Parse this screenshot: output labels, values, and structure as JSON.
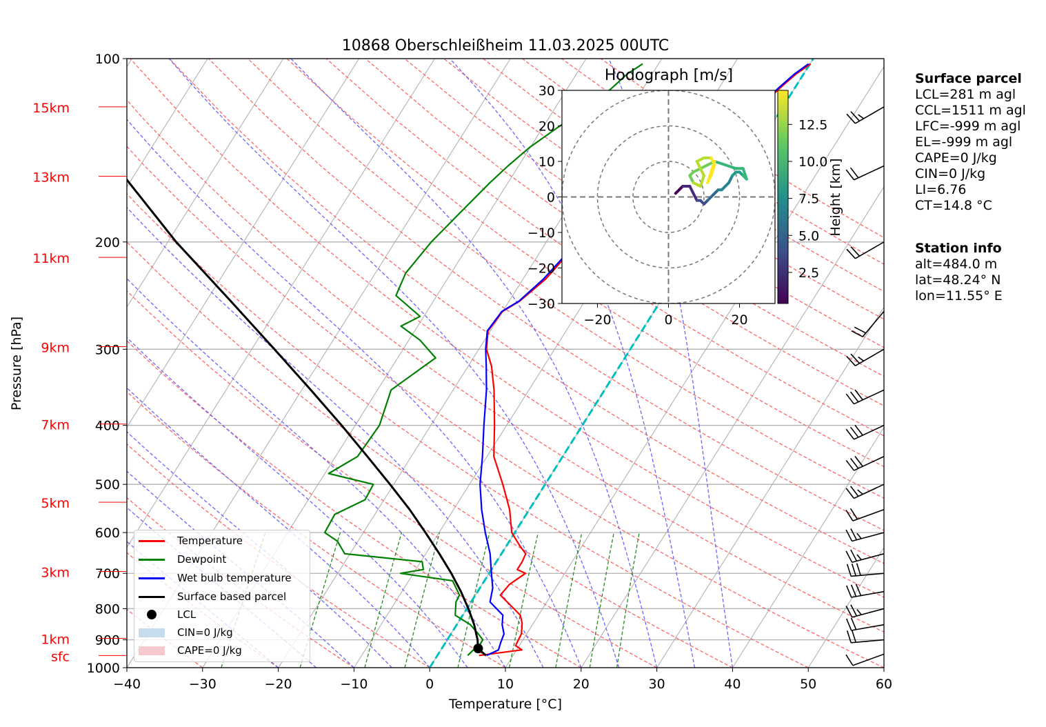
{
  "title": "10868 Oberschleißheim 11.03.2025 00UTC",
  "xlabel": "Temperature [°C]",
  "ylabel": "Pressure [hPa]",
  "colors": {
    "temperature": "#ff0000",
    "dewpoint": "#008000",
    "wetbulb": "#0000ff",
    "parcel": "#000000",
    "dry_adiabat": "#ff6666",
    "moist_adiabat": "#6666ff",
    "mixing_ratio": "#228b22",
    "isotherm": "#aaaaaa",
    "zero_line": "#00bfbf",
    "height_label": "#ff0000"
  },
  "chart_data": {
    "type": "line",
    "x_range": [
      -40,
      60
    ],
    "pressure_range": [
      1000,
      100
    ],
    "x_ticks": [
      "−40",
      "−30",
      "−20",
      "−10",
      "0",
      "10",
      "20",
      "30",
      "40",
      "50",
      "60"
    ],
    "pressure_ticks": [
      "1000",
      "900",
      "800",
      "700",
      "600",
      "500",
      "400",
      "300",
      "200",
      "100"
    ],
    "height_labels": [
      "sfc",
      "1km",
      "3km",
      "5km",
      "7km",
      "9km",
      "11km",
      "13km",
      "15km"
    ],
    "height_label_pressures": [
      955,
      895,
      695,
      535,
      398,
      297,
      212,
      156,
      120
    ],
    "series": [
      {
        "name": "Temperature",
        "points": [
          [
            955,
            5.5
          ],
          [
            935,
            10.7
          ],
          [
            920,
            9.5
          ],
          [
            880,
            9.3
          ],
          [
            845,
            8.5
          ],
          [
            820,
            7.6
          ],
          [
            800,
            6.2
          ],
          [
            760,
            3.3
          ],
          [
            730,
            3.6
          ],
          [
            700,
            4.8
          ],
          [
            690,
            3.4
          ],
          [
            670,
            3.4
          ],
          [
            650,
            3.2
          ],
          [
            630,
            1.7
          ],
          [
            600,
            -0.4
          ],
          [
            550,
            -2.6
          ],
          [
            500,
            -5.6
          ],
          [
            450,
            -9.1
          ],
          [
            400,
            -11.6
          ],
          [
            350,
            -14.6
          ],
          [
            320,
            -16.9
          ],
          [
            300,
            -19.0
          ],
          [
            280,
            -20.3
          ],
          [
            260,
            -20.0
          ],
          [
            250,
            -18.6
          ],
          [
            230,
            -17.0
          ],
          [
            210,
            -16.2
          ],
          [
            200,
            -15.3
          ],
          [
            180,
            -12.4
          ],
          [
            165,
            -10.0
          ],
          [
            150,
            -7.6
          ],
          [
            140,
            -5.2
          ],
          [
            130,
            -3.0
          ],
          [
            120,
            -3.0
          ],
          [
            112,
            -2.0
          ],
          [
            106,
            -1.0
          ],
          [
            102,
            0.1
          ]
        ]
      },
      {
        "name": "Dewpoint",
        "points": [
          [
            955,
            4.0
          ],
          [
            935,
            4.3
          ],
          [
            920,
            4.7
          ],
          [
            900,
            4.7
          ],
          [
            880,
            3.6
          ],
          [
            850,
            1.8
          ],
          [
            820,
            -1.0
          ],
          [
            780,
            -2.0
          ],
          [
            760,
            -2.1
          ],
          [
            720,
            -4.2
          ],
          [
            700,
            -11.7
          ],
          [
            690,
            -9.0
          ],
          [
            670,
            -9.8
          ],
          [
            650,
            -20.7
          ],
          [
            620,
            -22.7
          ],
          [
            600,
            -25.1
          ],
          [
            560,
            -25.3
          ],
          [
            530,
            -22.5
          ],
          [
            500,
            -22.7
          ],
          [
            480,
            -29.5
          ],
          [
            450,
            -27.1
          ],
          [
            400,
            -26.8
          ],
          [
            350,
            -28.2
          ],
          [
            310,
            -25.0
          ],
          [
            290,
            -28.5
          ],
          [
            275,
            -32.2
          ],
          [
            265,
            -30.5
          ],
          [
            245,
            -35.4
          ],
          [
            225,
            -36.0
          ],
          [
            200,
            -35.2
          ],
          [
            180,
            -33.9
          ],
          [
            160,
            -32.4
          ],
          [
            150,
            -31.4
          ],
          [
            140,
            -30.1
          ],
          [
            130,
            -28.1
          ],
          [
            120,
            -25.6
          ],
          [
            112,
            -24.2
          ],
          [
            106,
            -23.3
          ],
          [
            102,
            -22.1
          ]
        ]
      },
      {
        "name": "Wet bulb temperature",
        "points": [
          [
            955,
            6.5
          ],
          [
            935,
            7.6
          ],
          [
            910,
            7.3
          ],
          [
            880,
            7.0
          ],
          [
            850,
            6.0
          ],
          [
            820,
            5.3
          ],
          [
            780,
            2.5
          ],
          [
            740,
            1.7
          ],
          [
            700,
            0.3
          ],
          [
            650,
            -1.5
          ],
          [
            600,
            -3.9
          ],
          [
            550,
            -6.3
          ],
          [
            500,
            -8.6
          ],
          [
            450,
            -10.6
          ],
          [
            400,
            -13.0
          ],
          [
            350,
            -15.6
          ],
          [
            320,
            -17.6
          ],
          [
            300,
            -19.1
          ],
          [
            280,
            -20.4
          ],
          [
            260,
            -20.1
          ],
          [
            250,
            -18.7
          ],
          [
            230,
            -17.3
          ],
          [
            210,
            -16.4
          ],
          [
            200,
            -15.5
          ],
          [
            180,
            -12.7
          ],
          [
            165,
            -10.3
          ],
          [
            150,
            -7.8
          ],
          [
            140,
            -5.5
          ],
          [
            130,
            -3.3
          ],
          [
            120,
            -3.2
          ],
          [
            112,
            -2.2
          ],
          [
            106,
            -1.2
          ],
          [
            102,
            -0.2
          ]
        ]
      },
      {
        "name": "Surface based parcel",
        "points": [
          [
            955,
            6.4
          ],
          [
            930,
            4.8
          ],
          [
            900,
            4.0
          ],
          [
            850,
            2.3
          ],
          [
            800,
            0.2
          ],
          [
            750,
            -2.2
          ],
          [
            700,
            -5.0
          ],
          [
            650,
            -8.2
          ],
          [
            600,
            -11.8
          ],
          [
            550,
            -15.8
          ],
          [
            500,
            -20.5
          ],
          [
            450,
            -25.8
          ],
          [
            400,
            -31.8
          ],
          [
            350,
            -38.8
          ],
          [
            300,
            -47.0
          ],
          [
            250,
            -56.8
          ],
          [
            200,
            -68.9
          ],
          [
            150,
            -83.2
          ]
        ]
      }
    ],
    "lcl": {
      "label": "LCL",
      "pressure": 930,
      "temperature": 4.8
    },
    "wind_barbs": [
      {
        "pressure": 950,
        "speed_kt": 10,
        "dir": 250
      },
      {
        "pressure": 900,
        "speed_kt": 20,
        "dir": 265
      },
      {
        "pressure": 850,
        "speed_kt": 20,
        "dir": 260
      },
      {
        "pressure": 800,
        "speed_kt": 25,
        "dir": 255
      },
      {
        "pressure": 750,
        "speed_kt": 30,
        "dir": 260
      },
      {
        "pressure": 700,
        "speed_kt": 30,
        "dir": 265
      },
      {
        "pressure": 650,
        "speed_kt": 25,
        "dir": 255
      },
      {
        "pressure": 600,
        "speed_kt": 25,
        "dir": 255
      },
      {
        "pressure": 550,
        "speed_kt": 20,
        "dir": 250
      },
      {
        "pressure": 500,
        "speed_kt": 25,
        "dir": 245
      },
      {
        "pressure": 450,
        "speed_kt": 30,
        "dir": 245
      },
      {
        "pressure": 400,
        "speed_kt": 30,
        "dir": 245
      },
      {
        "pressure": 350,
        "speed_kt": 30,
        "dir": 245
      },
      {
        "pressure": 300,
        "speed_kt": 25,
        "dir": 240
      },
      {
        "pressure": 260,
        "speed_kt": 20,
        "dir": 220
      },
      {
        "pressure": 200,
        "speed_kt": 20,
        "dir": 240
      },
      {
        "pressure": 150,
        "speed_kt": 20,
        "dir": 245
      },
      {
        "pressure": 120,
        "speed_kt": 25,
        "dir": 240
      }
    ],
    "legend": {
      "placement": "lower-left",
      "entries": [
        "Temperature",
        "Dewpoint",
        "Wet bulb temperature",
        "Surface based parcel",
        "LCL",
        "CIN=0 J/kg",
        "CAPE=0 J/kg"
      ]
    }
  },
  "hodograph": {
    "title": "Hodograph [m/s]",
    "range": [
      -30,
      30
    ],
    "rings": [
      10,
      20,
      30
    ],
    "x_ticks": [
      "−20",
      "0",
      "20"
    ],
    "y_ticks": [
      "30",
      "20",
      "10",
      "0",
      "−10",
      "−20",
      "−30"
    ],
    "colorbar_label": "Height [km]",
    "colorbar_ticks": [
      "2.5",
      "5.0",
      "7.5",
      "10.0",
      "12.5"
    ],
    "colorbar_range": [
      0.4,
      14.8
    ],
    "trace": [
      [
        2,
        1,
        0.5
      ],
      [
        3,
        2,
        1.0
      ],
      [
        4,
        3,
        1.5
      ],
      [
        6,
        3,
        2.0
      ],
      [
        7,
        1,
        2.5
      ],
      [
        8,
        -1,
        3.0
      ],
      [
        9,
        -1,
        3.5
      ],
      [
        10,
        -2,
        4.0
      ],
      [
        11,
        -1,
        4.5
      ],
      [
        12,
        0,
        5.0
      ],
      [
        13,
        1,
        5.5
      ],
      [
        14,
        2,
        6.0
      ],
      [
        15,
        2,
        6.5
      ],
      [
        17,
        4,
        7.0
      ],
      [
        18,
        6,
        7.5
      ],
      [
        19,
        7,
        8.0
      ],
      [
        20,
        7,
        8.5
      ],
      [
        21,
        6,
        9.0
      ],
      [
        22,
        5,
        9.2
      ],
      [
        21,
        8,
        9.5
      ],
      [
        19,
        8,
        9.8
      ],
      [
        16,
        9,
        10.0
      ],
      [
        13,
        10,
        10.3
      ],
      [
        11,
        9,
        10.6
      ],
      [
        9,
        8,
        10.9
      ],
      [
        7,
        7,
        11.2
      ],
      [
        6,
        6,
        11.5
      ],
      [
        7,
        4,
        11.8
      ],
      [
        9,
        3,
        12.1
      ],
      [
        10,
        6,
        12.4
      ],
      [
        8,
        10,
        12.7
      ],
      [
        10,
        11,
        13.0
      ],
      [
        12,
        11,
        13.3
      ],
      [
        13,
        9,
        13.6
      ],
      [
        12,
        6,
        13.9
      ],
      [
        11,
        4,
        14.2
      ],
      [
        12,
        7,
        14.5
      ],
      [
        13,
        10,
        14.8
      ]
    ]
  },
  "info": {
    "parcel_header": "Surface parcel",
    "parcel_lines": [
      "LCL=281 m agl",
      "CCL=1511 m agl",
      "LFC=-999 m agl",
      "EL=-999 m agl",
      "CAPE=0 J/kg",
      "CIN=0 J/kg",
      "LI=6.76",
      "CT=14.8 °C"
    ],
    "station_header": "Station info",
    "station_lines": [
      "alt=484.0 m",
      "lat=48.24° N",
      "lon=11.55° E"
    ]
  }
}
